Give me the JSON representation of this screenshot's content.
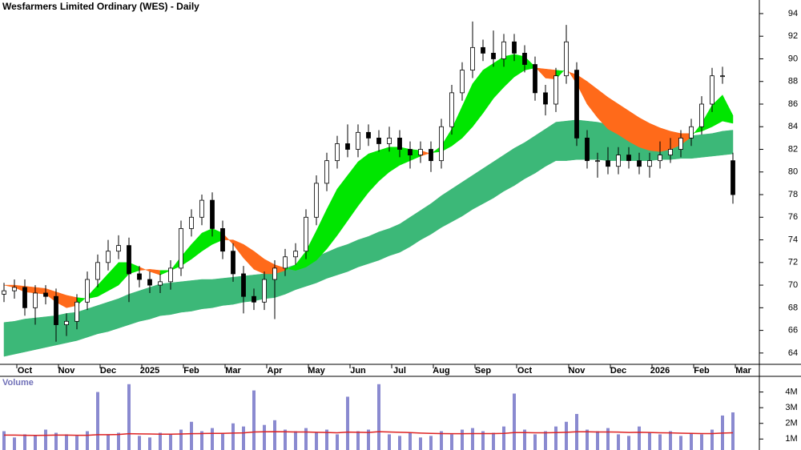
{
  "chart_data": {
    "type": "candlestick",
    "title": "Wesfarmers Limited Ordinary (WES) - Daily",
    "categories": [
      null,
      null,
      "Oct",
      null,
      null,
      null,
      "Nov",
      null,
      null,
      null,
      "Dec",
      null,
      null,
      null,
      "2025",
      null,
      null,
      null,
      "Feb",
      null,
      null,
      null,
      "Mar",
      null,
      null,
      null,
      "Apr",
      null,
      null,
      null,
      "May",
      null,
      null,
      null,
      "Jun",
      null,
      null,
      null,
      "Jul",
      null,
      null,
      null,
      "Aug",
      null,
      null,
      null,
      "Sep",
      null,
      null,
      null,
      "Oct",
      null,
      null,
      null,
      null,
      "Nov",
      null,
      null,
      null,
      "Dec",
      null,
      null,
      null,
      "2026",
      null,
      null,
      null,
      "Feb",
      null,
      null,
      null,
      "Mar"
    ],
    "open": [
      69.2,
      69.5,
      69.8,
      68.0,
      69.3,
      69.0,
      66.5,
      66.8,
      68.5,
      70.5,
      72.0,
      73.0,
      73.5,
      71.0,
      70.5,
      70.0,
      70.3,
      71.5,
      75.0,
      76.0,
      77.5,
      75.0,
      73.0,
      71.0,
      69.0,
      68.5,
      70.5,
      71.5,
      72.5,
      73.0,
      76.0,
      79.0,
      81.0,
      82.5,
      82.0,
      83.5,
      83.0,
      82.5,
      83.0,
      82.0,
      81.5,
      82.0,
      81.0,
      84.0,
      87.0,
      89.0,
      91.0,
      90.5,
      90.0,
      91.5,
      90.5,
      89.5,
      87.0,
      86.0,
      88.5,
      89.0,
      83.0,
      81.0,
      81.0,
      80.5,
      81.5,
      81.0,
      80.5,
      81.0,
      81.5,
      82.0,
      83.0,
      84.0,
      86.0,
      88.5,
      81.0,
      null
    ],
    "high": [
      70.2,
      70.5,
      70.5,
      70.0,
      70.0,
      69.7,
      67.5,
      69.2,
      71.2,
      72.7,
      74.0,
      74.4,
      74.2,
      71.7,
      71.2,
      71.0,
      72.2,
      75.7,
      76.7,
      78.0,
      78.2,
      75.7,
      73.7,
      71.7,
      69.7,
      71.2,
      72.2,
      73.2,
      73.7,
      76.7,
      79.7,
      81.7,
      83.2,
      84.2,
      84.2,
      84.2,
      83.7,
      84.0,
      83.7,
      82.7,
      82.7,
      82.7,
      84.7,
      87.7,
      89.7,
      93.3,
      91.7,
      92.5,
      92.2,
      92.2,
      91.2,
      90.2,
      87.7,
      89.2,
      93.0,
      89.7,
      83.7,
      81.7,
      82.2,
      82.2,
      82.2,
      81.7,
      81.7,
      82.7,
      83.0,
      83.7,
      84.7,
      86.7,
      89.2,
      89.3,
      81.7,
      null
    ],
    "low": [
      68.5,
      68.8,
      67.3,
      66.5,
      68.3,
      65.0,
      65.5,
      66.1,
      67.8,
      69.8,
      71.3,
      72.3,
      68.5,
      69.8,
      69.3,
      69.3,
      69.6,
      70.8,
      74.3,
      75.3,
      74.3,
      72.3,
      70.3,
      67.5,
      67.8,
      67.8,
      67.0,
      70.8,
      71.8,
      72.3,
      75.3,
      78.3,
      80.3,
      81.3,
      81.3,
      82.3,
      81.8,
      81.8,
      81.3,
      80.3,
      80.8,
      80.0,
      80.3,
      83.3,
      86.3,
      88.3,
      89.8,
      89.3,
      89.3,
      89.8,
      88.8,
      86.3,
      85.0,
      85.3,
      87.8,
      82.3,
      80.3,
      79.5,
      79.8,
      79.8,
      80.3,
      79.8,
      79.5,
      80.3,
      80.8,
      81.3,
      82.3,
      83.3,
      85.3,
      87.8,
      77.2,
      null
    ],
    "close": [
      69.5,
      69.8,
      68.0,
      69.3,
      69.0,
      66.5,
      66.8,
      68.5,
      70.5,
      72.0,
      73.0,
      73.5,
      71.0,
      70.5,
      70.0,
      70.3,
      71.5,
      75.0,
      76.0,
      77.5,
      75.0,
      73.0,
      71.0,
      69.0,
      68.5,
      70.5,
      71.5,
      72.5,
      73.0,
      76.0,
      79.0,
      81.0,
      82.5,
      82.0,
      83.5,
      83.0,
      82.5,
      83.0,
      82.0,
      81.5,
      82.0,
      81.0,
      84.0,
      87.0,
      89.0,
      91.0,
      90.5,
      90.0,
      91.5,
      90.5,
      89.5,
      87.0,
      86.0,
      88.5,
      91.5,
      83.0,
      81.0,
      81.0,
      80.5,
      81.5,
      81.0,
      80.5,
      81.0,
      81.5,
      82.0,
      83.0,
      84.0,
      86.0,
      88.5,
      88.5,
      78.0,
      null
    ],
    "long_band": {
      "color": "#3cb878",
      "upper": [
        66.7,
        66.8,
        67.0,
        67.1,
        67.2,
        67.3,
        67.5,
        67.6,
        67.9,
        68.2,
        68.5,
        68.8,
        69.2,
        69.5,
        69.8,
        70.1,
        70.2,
        70.3,
        70.4,
        70.5,
        70.5,
        70.6,
        70.7,
        70.8,
        70.9,
        71.0,
        71.1,
        71.5,
        71.8,
        72.2,
        72.5,
        72.9,
        73.3,
        73.6,
        74.0,
        74.3,
        74.7,
        75.0,
        75.4,
        76.0,
        76.6,
        77.2,
        77.9,
        78.5,
        79.1,
        79.7,
        80.3,
        80.9,
        81.5,
        82.1,
        82.6,
        83.2,
        83.8,
        84.4,
        84.5,
        84.6,
        84.5,
        84.4,
        84.2,
        84.1,
        84.0,
        83.9,
        83.7,
        83.6,
        83.5,
        83.3,
        83.2,
        83.3,
        83.4,
        83.6,
        83.7,
        null
      ],
      "lower": [
        63.7,
        63.9,
        64.1,
        64.3,
        64.5,
        64.7,
        64.9,
        65.1,
        65.4,
        65.7,
        65.9,
        66.2,
        66.5,
        66.8,
        67.0,
        67.3,
        67.4,
        67.6,
        67.7,
        67.9,
        68.0,
        68.2,
        68.3,
        68.5,
        68.6,
        68.8,
        68.9,
        69.2,
        69.6,
        69.9,
        70.2,
        70.6,
        70.9,
        71.2,
        71.6,
        71.9,
        72.2,
        72.6,
        72.9,
        73.4,
        74.0,
        74.5,
        75.1,
        75.6,
        76.1,
        76.7,
        77.2,
        77.7,
        78.3,
        78.8,
        79.4,
        79.9,
        80.5,
        81.0,
        81.0,
        81.1,
        81.1,
        81.1,
        81.0,
        81.0,
        81.0,
        81.0,
        81.0,
        81.1,
        81.1,
        81.2,
        81.2,
        81.3,
        81.4,
        81.5,
        81.6,
        null
      ]
    },
    "short_band": {
      "up_color": "#00e600",
      "down_color": "#ff6a1a",
      "fast": [
        70.0,
        69.8,
        69.4,
        69.3,
        69.2,
        68.5,
        68.0,
        68.2,
        69.0,
        70.0,
        71.0,
        72.0,
        72.0,
        71.6,
        71.2,
        70.9,
        71.3,
        72.5,
        73.6,
        74.6,
        75.0,
        74.6,
        73.6,
        72.4,
        71.4,
        71.0,
        71.0,
        71.3,
        71.8,
        73.0,
        74.8,
        76.7,
        78.5,
        79.7,
        80.9,
        81.6,
        81.9,
        82.2,
        82.2,
        82.0,
        81.9,
        81.6,
        82.3,
        83.8,
        85.8,
        87.8,
        89.0,
        89.6,
        90.2,
        90.4,
        90.2,
        89.3,
        88.3,
        88.2,
        89.2,
        87.8,
        86.0,
        84.8,
        83.8,
        83.3,
        82.7,
        82.2,
        81.9,
        81.8,
        82.0,
        82.4,
        83.1,
        84.3,
        85.9,
        86.8,
        85.0,
        null
      ],
      "slow": [
        70.0,
        70.0,
        69.9,
        69.8,
        69.7,
        69.4,
        69.1,
        68.9,
        68.8,
        69.0,
        69.5,
        70.0,
        71.0,
        71.3,
        71.4,
        71.3,
        71.3,
        71.7,
        72.3,
        73.0,
        73.6,
        74.0,
        74.0,
        73.6,
        73.0,
        72.3,
        71.8,
        71.5,
        71.3,
        71.6,
        72.2,
        73.2,
        74.4,
        75.7,
        77.0,
        78.2,
        79.2,
        80.0,
        80.6,
        81.0,
        81.4,
        81.7,
        81.8,
        82.3,
        83.0,
        84.0,
        85.2,
        86.5,
        87.5,
        88.4,
        89.0,
        89.2,
        89.1,
        89.0,
        88.9,
        88.6,
        88.0,
        87.3,
        86.6,
        86.0,
        85.4,
        84.8,
        84.3,
        83.9,
        83.6,
        83.4,
        83.4,
        83.6,
        84.0,
        84.5,
        84.3,
        null
      ]
    },
    "ylim": [
      63,
      95.2
    ],
    "yticks": [
      64,
      66,
      68,
      70,
      72,
      74,
      76,
      78,
      80,
      82,
      84,
      86,
      88,
      90,
      92,
      94
    ],
    "volume": {
      "label": "Volume",
      "color": "#8a8ad0",
      "ma_color": "#dd2222",
      "values": [
        1500000,
        1100000,
        1300000,
        1200000,
        1600000,
        1400000,
        1300000,
        1200000,
        1500000,
        4000000,
        1300000,
        1400000,
        4500000,
        1200000,
        1100000,
        1400000,
        1300000,
        1600000,
        2100000,
        1500000,
        1700000,
        1400000,
        2000000,
        1800000,
        4100000,
        1900000,
        2200000,
        1600000,
        1500000,
        1700000,
        1400000,
        1600000,
        1300000,
        3700000,
        1500000,
        1600000,
        4500000,
        1300000,
        1200000,
        1400000,
        1100000,
        1200000,
        1500000,
        1300000,
        1600000,
        1700000,
        1500000,
        1400000,
        1800000,
        3900000,
        1600000,
        1300000,
        1500000,
        1800000,
        2100000,
        2600000,
        1600000,
        1500000,
        1700000,
        1300000,
        1200000,
        1800000,
        1400000,
        1300000,
        1500000,
        1200000,
        1400000,
        1300000,
        1600000,
        2500000,
        2700000,
        null
      ],
      "ma": [
        1250000,
        1250000,
        1240000,
        1230000,
        1240000,
        1250000,
        1250000,
        1240000,
        1240000,
        1280000,
        1280000,
        1290000,
        1340000,
        1330000,
        1320000,
        1310000,
        1310000,
        1320000,
        1340000,
        1350000,
        1360000,
        1360000,
        1380000,
        1390000,
        1450000,
        1460000,
        1470000,
        1460000,
        1450000,
        1450000,
        1430000,
        1420000,
        1400000,
        1440000,
        1430000,
        1420000,
        1470000,
        1450000,
        1430000,
        1410000,
        1380000,
        1360000,
        1350000,
        1340000,
        1340000,
        1350000,
        1350000,
        1350000,
        1360000,
        1410000,
        1410000,
        1400000,
        1400000,
        1410000,
        1430000,
        1460000,
        1460000,
        1450000,
        1450000,
        1440000,
        1420000,
        1430000,
        1420000,
        1400000,
        1390000,
        1370000,
        1360000,
        1350000,
        1350000,
        1380000,
        1400000,
        null
      ],
      "ylim": [
        300000,
        5000000
      ],
      "yticks": [
        {
          "value": 1000000,
          "label": "1M"
        },
        {
          "value": 2000000,
          "label": "2M"
        },
        {
          "value": 3000000,
          "label": "3M"
        },
        {
          "value": 4000000,
          "label": "4M"
        }
      ]
    }
  }
}
